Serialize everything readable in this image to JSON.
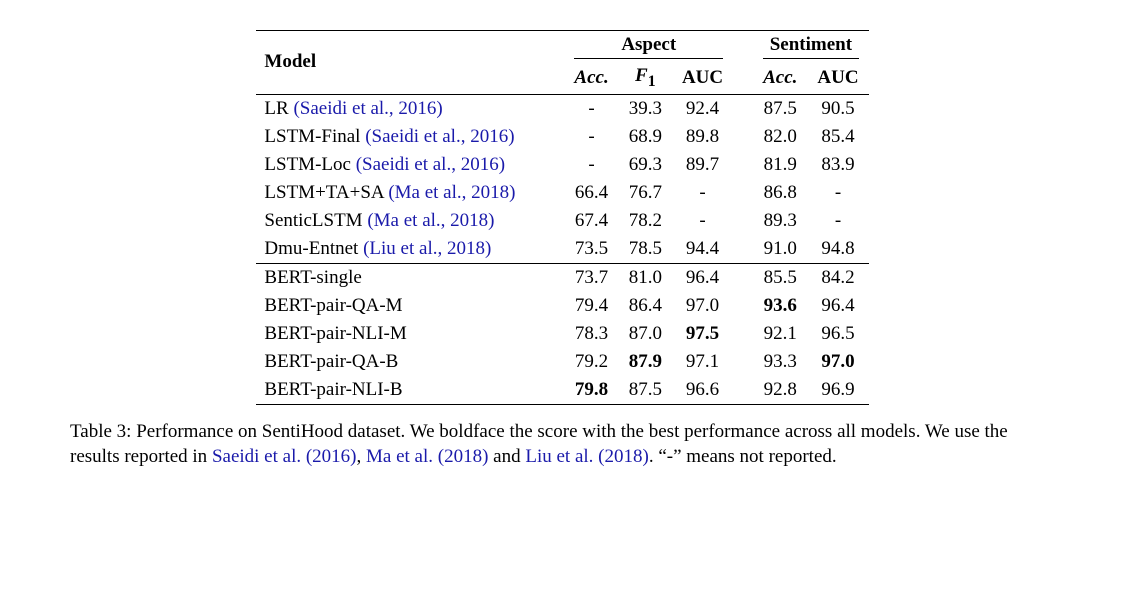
{
  "table": {
    "header": {
      "model": "Model",
      "aspect": "Aspect",
      "sentiment": "Sentiment",
      "acc": "Acc.",
      "f1": "F",
      "f1sub": "1",
      "auc": "AUC"
    },
    "rows_top": [
      {
        "model": "LR ",
        "cite": "(Saeidi et al., 2016)",
        "a_acc": "-",
        "a_f1": "39.3",
        "a_auc": "92.4",
        "s_acc": "87.5",
        "s_auc": "90.5"
      },
      {
        "model": "LSTM-Final ",
        "cite": "(Saeidi et al., 2016)",
        "a_acc": "-",
        "a_f1": "68.9",
        "a_auc": "89.8",
        "s_acc": "82.0",
        "s_auc": "85.4"
      },
      {
        "model": "LSTM-Loc ",
        "cite": "(Saeidi et al., 2016)",
        "a_acc": "-",
        "a_f1": "69.3",
        "a_auc": "89.7",
        "s_acc": "81.9",
        "s_auc": "83.9"
      },
      {
        "model": "LSTM+TA+SA ",
        "cite": "(Ma et al., 2018)",
        "a_acc": "66.4",
        "a_f1": "76.7",
        "a_auc": "-",
        "s_acc": "86.8",
        "s_auc": "-"
      },
      {
        "model": "SenticLSTM ",
        "cite": "(Ma et al., 2018)",
        "a_acc": "67.4",
        "a_f1": "78.2",
        "a_auc": "-",
        "s_acc": "89.3",
        "s_auc": "-"
      },
      {
        "model": "Dmu-Entnet ",
        "cite": "(Liu et al., 2018)",
        "a_acc": "73.5",
        "a_f1": "78.5",
        "a_auc": "94.4",
        "s_acc": "91.0",
        "s_auc": "94.8"
      }
    ],
    "rows_bot": [
      {
        "model": "BERT-single",
        "a_acc": "73.7",
        "a_f1": "81.0",
        "a_auc": "96.4",
        "s_acc": "85.5",
        "s_auc": "84.2"
      },
      {
        "model": "BERT-pair-QA-M",
        "a_acc": "79.4",
        "a_f1": "86.4",
        "a_auc": "97.0",
        "s_acc": "93.6",
        "s_acc_bold": true,
        "s_auc": "96.4"
      },
      {
        "model": "BERT-pair-NLI-M",
        "a_acc": "78.3",
        "a_f1": "87.0",
        "a_auc": "97.5",
        "a_auc_bold": true,
        "s_acc": "92.1",
        "s_auc": "96.5"
      },
      {
        "model": "BERT-pair-QA-B",
        "a_acc": "79.2",
        "a_f1": "87.9",
        "a_f1_bold": true,
        "a_auc": "97.1",
        "s_acc": "93.3",
        "s_auc": "97.0",
        "s_auc_bold": true
      },
      {
        "model": "BERT-pair-NLI-B",
        "a_acc": "79.8",
        "a_acc_bold": true,
        "a_f1": "87.5",
        "a_auc": "96.6",
        "s_acc": "92.8",
        "s_auc": "96.9"
      }
    ]
  },
  "caption": {
    "lead": "Table 3:  Performance on SentiHood dataset. We boldface the score with the best performance across all models. We use the results reported in ",
    "cite1": "Saeidi et al. (2016)",
    "sep1": ", ",
    "cite2": "Ma et al. (2018)",
    "sep2": " and ",
    "cite3": "Liu et al. (2018)",
    "tail": ". “-” means not reported."
  }
}
